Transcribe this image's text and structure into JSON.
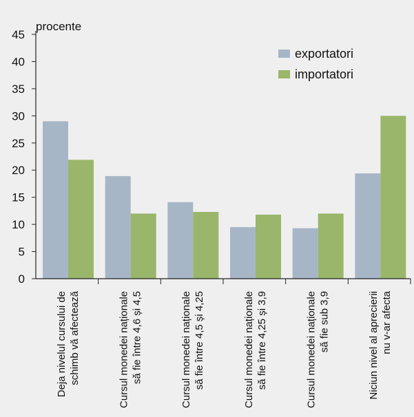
{
  "chart_data": {
    "type": "bar",
    "ylabel": "procente",
    "ylim": [
      0,
      45
    ],
    "yticks": [
      0,
      5,
      10,
      15,
      20,
      25,
      30,
      35,
      40,
      45
    ],
    "grid": false,
    "legend_position": "top-right",
    "categories": [
      [
        "Deja nivelul cursului de",
        "schimb vă afectează"
      ],
      [
        "Cursul monedei naționale",
        "să fie între 4,6 și 4,5"
      ],
      [
        "Cursul monedei naționale",
        "să fie între 4,5 și 4,25"
      ],
      [
        "Cursul monedei naționale",
        "să fie între 4,25 și 3,9"
      ],
      [
        "Cursul monedei naționale",
        "să fie sub 3,9"
      ],
      [
        "Niciun nivel al aprecierii",
        "nu v-ar afecta"
      ]
    ],
    "series": [
      {
        "name": "exportatori",
        "color": "#a7b6c6",
        "values": [
          29,
          18.9,
          14.1,
          9.5,
          9.3,
          19.4
        ]
      },
      {
        "name": "importatori",
        "color": "#9ab66b",
        "values": [
          21.9,
          12,
          12.3,
          11.8,
          12,
          30
        ]
      }
    ]
  }
}
